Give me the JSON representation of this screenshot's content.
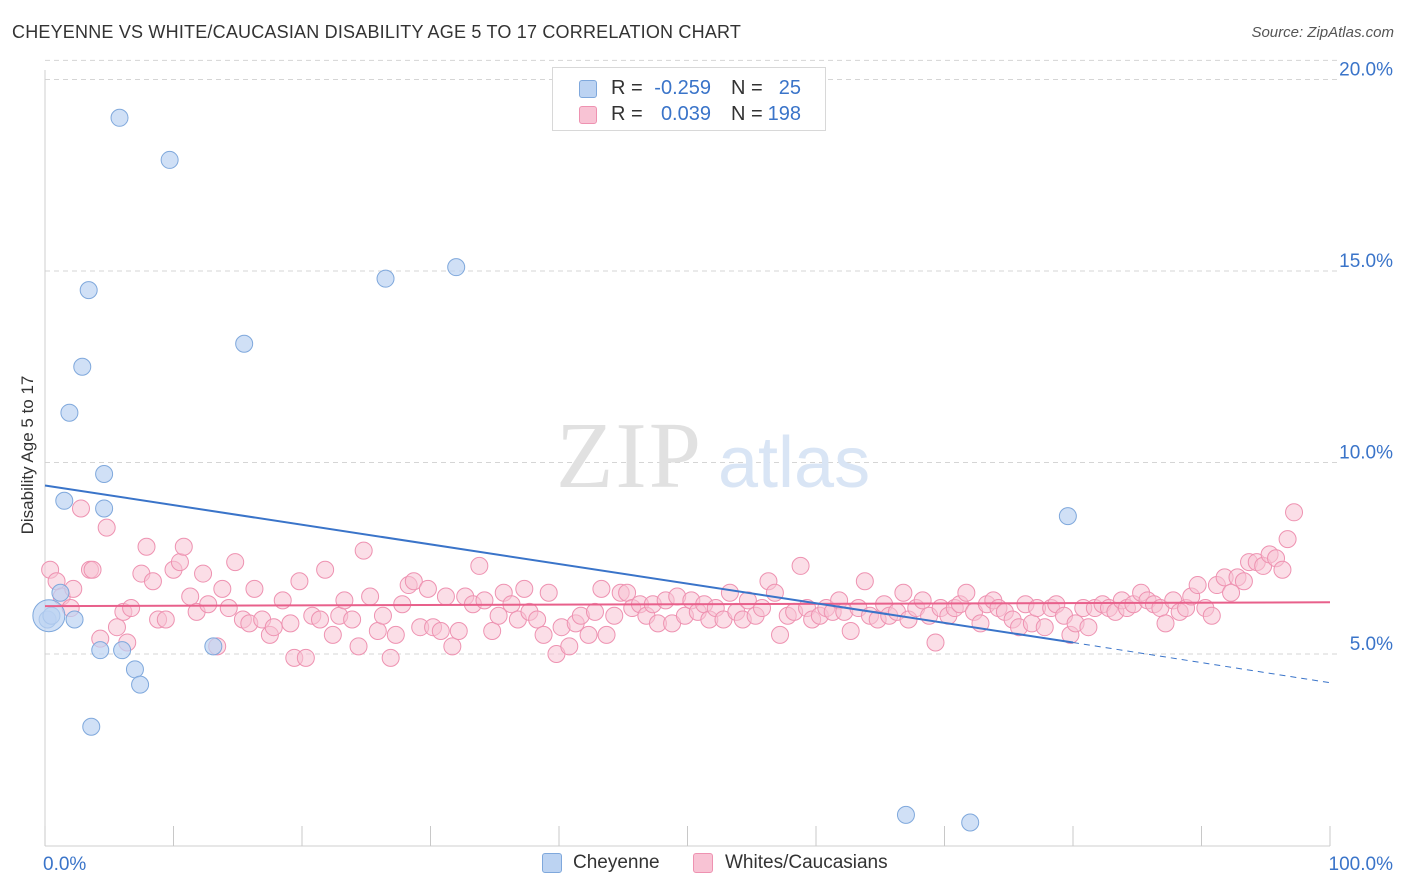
{
  "title": "CHEYENNE VS WHITE/CAUCASIAN DISABILITY AGE 5 TO 17 CORRELATION CHART",
  "source": "Source: ZipAtlas.com",
  "watermark": {
    "zip": "ZIP",
    "atlas": "atlas"
  },
  "colors": {
    "cheyenne_fill": "#bcd3f2",
    "cheyenne_stroke": "#7fa8dc",
    "cheyenne_line": "#3a74c9",
    "white_fill": "#f8c3d4",
    "white_stroke": "#ee92b1",
    "white_line": "#e8608b",
    "axis_value": "#3a74c9",
    "grid": "#d5d5d5"
  },
  "legend_top": {
    "rows": [
      {
        "r_label": "R =",
        "r_value": "-0.259",
        "n_label": "N =",
        "n_value": "25"
      },
      {
        "r_label": "R =",
        "r_value": "0.039",
        "n_label": "N =",
        "n_value": "198"
      }
    ]
  },
  "legend_bottom": {
    "items": [
      "Cheyenne",
      "Whites/Caucasians"
    ]
  },
  "chart_data": {
    "type": "scatter",
    "title": "CHEYENNE VS WHITE/CAUCASIAN DISABILITY AGE 5 TO 17 CORRELATION CHART",
    "xlabel": "",
    "ylabel": "Disability Age 5 to 17",
    "xlim": [
      0,
      100
    ],
    "ylim": [
      0,
      20.5
    ],
    "x_tick_labels": [
      "0.0%",
      "100.0%"
    ],
    "y_ticks": [
      5,
      10,
      15,
      20
    ],
    "y_tick_labels": [
      "5.0%",
      "10.0%",
      "15.0%",
      "20.0%"
    ],
    "grid": true,
    "legend_position": "top-center",
    "series": [
      {
        "name": "Cheyenne",
        "r": -0.259,
        "n": 25,
        "trend": {
          "x0": 0,
          "y0": 9.4,
          "x1": 80,
          "y1": 5.3,
          "dashed_to": 100,
          "dashed_y1": 4.25
        },
        "points": [
          [
            0.2,
            5.9
          ],
          [
            0.5,
            6.0
          ],
          [
            1.2,
            6.6
          ],
          [
            2.3,
            5.9
          ],
          [
            1.5,
            9.0
          ],
          [
            1.9,
            11.3
          ],
          [
            2.9,
            12.5
          ],
          [
            3.4,
            14.5
          ],
          [
            5.8,
            19.0
          ],
          [
            9.7,
            17.9
          ],
          [
            15.5,
            13.1
          ],
          [
            26.5,
            14.8
          ],
          [
            32.0,
            15.1
          ],
          [
            4.6,
            9.7
          ],
          [
            4.6,
            8.8
          ],
          [
            4.3,
            5.1
          ],
          [
            6.0,
            5.1
          ],
          [
            7.0,
            4.6
          ],
          [
            7.4,
            4.2
          ],
          [
            3.6,
            3.1
          ],
          [
            13.1,
            5.2
          ],
          [
            79.6,
            8.6
          ],
          [
            67.0,
            0.8
          ],
          [
            72.0,
            0.6
          ],
          [
            0.3,
            6.0
          ]
        ]
      },
      {
        "name": "Whites/Caucasians",
        "r": 0.039,
        "n": 198,
        "trend": {
          "x0": 0,
          "y0": 6.25,
          "x1": 100,
          "y1": 6.35
        },
        "points": [
          [
            0.4,
            7.2
          ],
          [
            0.9,
            6.9
          ],
          [
            1.3,
            6.5
          ],
          [
            2.2,
            6.7
          ],
          [
            2.8,
            8.8
          ],
          [
            3.5,
            7.2
          ],
          [
            3.7,
            7.2
          ],
          [
            4.3,
            5.4
          ],
          [
            4.8,
            8.3
          ],
          [
            5.6,
            5.7
          ],
          [
            6.1,
            6.1
          ],
          [
            6.4,
            5.3
          ],
          [
            6.7,
            6.2
          ],
          [
            7.5,
            7.1
          ],
          [
            7.9,
            7.8
          ],
          [
            8.4,
            6.9
          ],
          [
            8.8,
            5.9
          ],
          [
            9.4,
            5.9
          ],
          [
            10.0,
            7.2
          ],
          [
            10.5,
            7.4
          ],
          [
            10.8,
            7.8
          ],
          [
            11.3,
            6.5
          ],
          [
            11.8,
            6.1
          ],
          [
            12.3,
            7.1
          ],
          [
            12.7,
            6.3
          ],
          [
            13.4,
            5.2
          ],
          [
            13.8,
            6.7
          ],
          [
            14.3,
            6.2
          ],
          [
            14.8,
            7.4
          ],
          [
            15.4,
            5.9
          ],
          [
            15.9,
            5.8
          ],
          [
            16.3,
            6.7
          ],
          [
            16.9,
            5.9
          ],
          [
            17.5,
            5.5
          ],
          [
            17.8,
            5.7
          ],
          [
            18.5,
            6.4
          ],
          [
            19.1,
            5.8
          ],
          [
            19.4,
            4.9
          ],
          [
            19.8,
            6.9
          ],
          [
            20.3,
            4.9
          ],
          [
            20.8,
            6.0
          ],
          [
            21.4,
            5.9
          ],
          [
            21.8,
            7.2
          ],
          [
            22.4,
            5.5
          ],
          [
            22.9,
            6.0
          ],
          [
            23.3,
            6.4
          ],
          [
            23.9,
            5.9
          ],
          [
            24.4,
            5.2
          ],
          [
            24.8,
            7.7
          ],
          [
            25.3,
            6.5
          ],
          [
            25.9,
            5.6
          ],
          [
            26.3,
            6.0
          ],
          [
            26.9,
            4.9
          ],
          [
            27.3,
            5.5
          ],
          [
            27.8,
            6.3
          ],
          [
            28.3,
            6.8
          ],
          [
            28.7,
            6.9
          ],
          [
            29.2,
            5.7
          ],
          [
            29.8,
            6.7
          ],
          [
            30.2,
            5.7
          ],
          [
            30.8,
            5.6
          ],
          [
            31.2,
            6.5
          ],
          [
            31.7,
            5.2
          ],
          [
            32.2,
            5.6
          ],
          [
            32.7,
            6.5
          ],
          [
            33.3,
            6.3
          ],
          [
            33.8,
            7.3
          ],
          [
            34.2,
            6.4
          ],
          [
            34.8,
            5.6
          ],
          [
            35.3,
            6.0
          ],
          [
            35.7,
            6.6
          ],
          [
            36.3,
            6.3
          ],
          [
            36.8,
            5.9
          ],
          [
            37.3,
            6.7
          ],
          [
            37.7,
            6.1
          ],
          [
            38.3,
            5.9
          ],
          [
            38.8,
            5.5
          ],
          [
            39.2,
            6.6
          ],
          [
            39.8,
            5.0
          ],
          [
            40.2,
            5.7
          ],
          [
            40.8,
            5.2
          ],
          [
            41.3,
            5.8
          ],
          [
            41.7,
            6.0
          ],
          [
            42.3,
            5.5
          ],
          [
            42.8,
            6.1
          ],
          [
            43.3,
            6.7
          ],
          [
            43.7,
            5.5
          ],
          [
            44.3,
            6.0
          ],
          [
            44.8,
            6.6
          ],
          [
            45.3,
            6.6
          ],
          [
            45.7,
            6.2
          ],
          [
            46.3,
            6.3
          ],
          [
            46.8,
            6.0
          ],
          [
            47.3,
            6.3
          ],
          [
            47.7,
            5.8
          ],
          [
            48.3,
            6.4
          ],
          [
            48.8,
            5.8
          ],
          [
            49.2,
            6.5
          ],
          [
            49.8,
            6.0
          ],
          [
            50.3,
            6.4
          ],
          [
            50.8,
            6.1
          ],
          [
            51.3,
            6.3
          ],
          [
            51.7,
            5.9
          ],
          [
            52.2,
            6.2
          ],
          [
            52.8,
            5.9
          ],
          [
            53.3,
            6.6
          ],
          [
            53.8,
            6.1
          ],
          [
            54.3,
            5.9
          ],
          [
            54.7,
            6.4
          ],
          [
            55.3,
            6.0
          ],
          [
            55.8,
            6.2
          ],
          [
            56.3,
            6.9
          ],
          [
            56.8,
            6.6
          ],
          [
            57.2,
            5.5
          ],
          [
            57.8,
            6.0
          ],
          [
            58.3,
            6.1
          ],
          [
            58.8,
            7.3
          ],
          [
            59.3,
            6.2
          ],
          [
            59.7,
            5.9
          ],
          [
            60.3,
            6.0
          ],
          [
            60.8,
            6.2
          ],
          [
            61.3,
            6.1
          ],
          [
            61.8,
            6.4
          ],
          [
            62.2,
            6.1
          ],
          [
            62.7,
            5.6
          ],
          [
            63.3,
            6.2
          ],
          [
            63.8,
            6.9
          ],
          [
            64.2,
            6.0
          ],
          [
            64.8,
            5.9
          ],
          [
            65.3,
            6.3
          ],
          [
            65.7,
            6.0
          ],
          [
            66.3,
            6.1
          ],
          [
            66.8,
            6.6
          ],
          [
            67.2,
            5.9
          ],
          [
            67.8,
            6.2
          ],
          [
            68.3,
            6.4
          ],
          [
            68.8,
            6.0
          ],
          [
            69.3,
            5.3
          ],
          [
            69.7,
            6.2
          ],
          [
            70.3,
            6.0
          ],
          [
            70.8,
            6.2
          ],
          [
            71.2,
            6.3
          ],
          [
            71.7,
            6.6
          ],
          [
            72.3,
            6.1
          ],
          [
            72.8,
            5.8
          ],
          [
            73.3,
            6.3
          ],
          [
            73.8,
            6.4
          ],
          [
            74.2,
            6.2
          ],
          [
            74.7,
            6.1
          ],
          [
            75.3,
            5.9
          ],
          [
            75.8,
            5.7
          ],
          [
            76.3,
            6.3
          ],
          [
            76.8,
            5.8
          ],
          [
            77.2,
            6.2
          ],
          [
            77.8,
            5.7
          ],
          [
            78.3,
            6.2
          ],
          [
            78.7,
            6.3
          ],
          [
            79.3,
            6.0
          ],
          [
            79.8,
            5.5
          ],
          [
            80.2,
            5.8
          ],
          [
            80.8,
            6.2
          ],
          [
            81.2,
            5.7
          ],
          [
            81.7,
            6.2
          ],
          [
            82.3,
            6.3
          ],
          [
            82.8,
            6.2
          ],
          [
            83.3,
            6.1
          ],
          [
            83.8,
            6.4
          ],
          [
            84.2,
            6.2
          ],
          [
            84.7,
            6.3
          ],
          [
            85.3,
            6.6
          ],
          [
            85.8,
            6.4
          ],
          [
            86.3,
            6.3
          ],
          [
            86.8,
            6.2
          ],
          [
            87.2,
            5.8
          ],
          [
            87.8,
            6.4
          ],
          [
            88.3,
            6.1
          ],
          [
            88.8,
            6.2
          ],
          [
            89.2,
            6.5
          ],
          [
            89.7,
            6.8
          ],
          [
            90.3,
            6.2
          ],
          [
            90.8,
            6.0
          ],
          [
            91.2,
            6.8
          ],
          [
            91.8,
            7.0
          ],
          [
            92.3,
            6.6
          ],
          [
            92.8,
            7.0
          ],
          [
            93.3,
            6.9
          ],
          [
            93.7,
            7.4
          ],
          [
            94.3,
            7.4
          ],
          [
            94.8,
            7.3
          ],
          [
            95.3,
            7.6
          ],
          [
            95.8,
            7.5
          ],
          [
            96.3,
            7.2
          ],
          [
            96.7,
            8.0
          ],
          [
            97.2,
            8.7
          ],
          [
            2.0,
            6.2
          ]
        ]
      }
    ]
  }
}
